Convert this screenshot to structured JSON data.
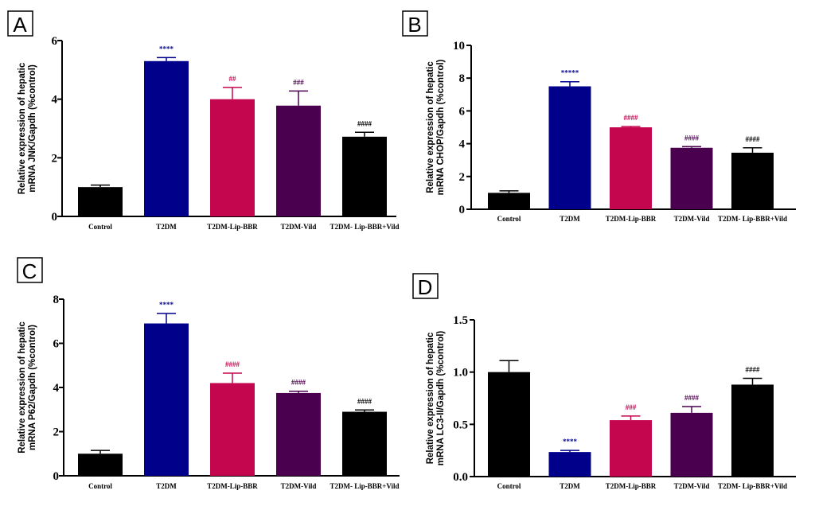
{
  "colors": {
    "Control": "#000000",
    "T2DM": "#00008b",
    "T2DM-Lip-BBR": "#c3064e",
    "T2DM-Vild": "#4a004f",
    "T2DM- Lip-BBR+Vild": "#000000"
  },
  "chart_data": [
    {
      "type": "bar",
      "panel": "A",
      "ylabel_line1": "Relative expression of hepatic",
      "ylabel_line2": "mRNA JNK/Gapdh (%control)",
      "categories": [
        "Control",
        "T2DM",
        "T2DM-Lip-BBR",
        "T2DM-Vild",
        "T2DM- Lip-BBR+Vild"
      ],
      "values": [
        1.0,
        5.3,
        4.0,
        3.78,
        2.72
      ],
      "errors": [
        0.07,
        0.12,
        0.4,
        0.5,
        0.15
      ],
      "significance": [
        "",
        "****",
        "##",
        "###",
        "####"
      ],
      "ylim": [
        0,
        6
      ],
      "yticks": [
        "0",
        "2",
        "4",
        "6"
      ],
      "ytick_values": [
        0,
        2,
        4,
        6
      ]
    },
    {
      "type": "bar",
      "panel": "B",
      "ylabel_line1": "Relative expression of hepatic",
      "ylabel_line2": "mRNA CHOP/Gapdh (%control)",
      "categories": [
        "Control",
        "T2DM",
        "T2DM-Lip-BBR",
        "T2DM-Vild",
        "T2DM- Lip-BBR+Vild"
      ],
      "values": [
        1.0,
        7.5,
        5.0,
        3.75,
        3.45
      ],
      "errors": [
        0.12,
        0.28,
        0.05,
        0.07,
        0.3
      ],
      "significance": [
        "",
        "*****",
        "####",
        "####",
        "####"
      ],
      "ylim": [
        0,
        10
      ],
      "yticks": [
        "0",
        "2",
        "4",
        "6",
        "8",
        "10"
      ],
      "ytick_values": [
        0,
        2,
        4,
        6,
        8,
        10
      ]
    },
    {
      "type": "bar",
      "panel": "C",
      "ylabel_line1": "Relative expression of hepatic",
      "ylabel_line2": "mRNA P62/Gapdh (%control)",
      "categories": [
        "Control",
        "T2DM",
        "T2DM-Lip-BBR",
        "T2DM-Vild",
        "T2DM- Lip-BBR+Vild"
      ],
      "values": [
        1.0,
        6.9,
        4.2,
        3.75,
        2.9
      ],
      "errors": [
        0.15,
        0.45,
        0.45,
        0.08,
        0.08
      ],
      "significance": [
        "",
        "****",
        "####",
        "####",
        "####"
      ],
      "ylim": [
        0,
        8
      ],
      "yticks": [
        "0",
        "2",
        "4",
        "6",
        "8"
      ],
      "ytick_values": [
        0,
        2,
        4,
        6,
        8
      ]
    },
    {
      "type": "bar",
      "panel": "D",
      "ylabel_line1": "Relative expression of hepatic",
      "ylabel_line2": "mRNA LC3-II/Gapdh (%control)",
      "categories": [
        "Control",
        "T2DM",
        "T2DM-Lip-BBR",
        "T2DM-Vild",
        "T2DM- Lip-BBR+Vild"
      ],
      "values": [
        1.0,
        0.235,
        0.54,
        0.61,
        0.88
      ],
      "errors": [
        0.11,
        0.015,
        0.04,
        0.06,
        0.06
      ],
      "significance": [
        "",
        "****",
        "###",
        "####",
        "####"
      ],
      "ylim": [
        0,
        1.5
      ],
      "yticks": [
        "0.0",
        "0.5",
        "1.0",
        "1.5"
      ],
      "ytick_values": [
        0,
        0.5,
        1.0,
        1.5
      ]
    }
  ]
}
